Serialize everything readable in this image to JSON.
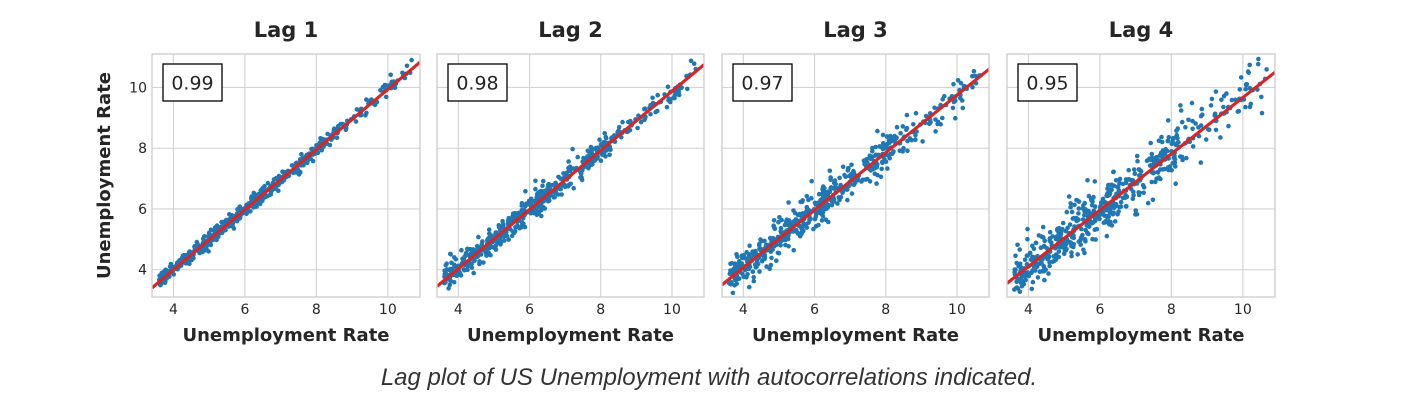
{
  "caption": "Lag plot of US Unemployment with autocorrelations indicated.",
  "colors": {
    "points": "#1f77b4",
    "fit_line": "#d62728",
    "grid": "#d4d4d4",
    "axes_frame": "#cccccc"
  },
  "chart_data": [
    {
      "type": "scatter",
      "title": "Lag 1",
      "xlabel": "Unemployment Rate",
      "ylabel": "Unemployment Rate",
      "annotation": "0.99",
      "xlim": [
        3.4,
        10.9
      ],
      "ylim": [
        3.1,
        11.1
      ],
      "xticks": [
        4,
        6,
        8,
        10
      ],
      "yticks": [
        4,
        6,
        8,
        10
      ],
      "grid": true,
      "fit_line": [
        [
          3.4,
          3.4
        ],
        [
          10.9,
          10.83
        ]
      ],
      "spread": 0.12
    },
    {
      "type": "scatter",
      "title": "Lag 2",
      "xlabel": "Unemployment Rate",
      "ylabel": "",
      "annotation": "0.98",
      "xlim": [
        3.4,
        10.9
      ],
      "ylim": [
        3.1,
        11.1
      ],
      "xticks": [
        4,
        6,
        8,
        10
      ],
      "yticks": [
        4,
        6,
        8,
        10
      ],
      "grid": true,
      "fit_line": [
        [
          3.4,
          3.45
        ],
        [
          10.9,
          10.75
        ]
      ],
      "spread": 0.2
    },
    {
      "type": "scatter",
      "title": "Lag 3",
      "xlabel": "Unemployment Rate",
      "ylabel": "",
      "annotation": "0.97",
      "xlim": [
        3.4,
        10.9
      ],
      "ylim": [
        3.1,
        11.1
      ],
      "xticks": [
        4,
        6,
        8,
        10
      ],
      "yticks": [
        4,
        6,
        8,
        10
      ],
      "grid": true,
      "fit_line": [
        [
          3.4,
          3.5
        ],
        [
          10.9,
          10.6
        ]
      ],
      "spread": 0.3
    },
    {
      "type": "scatter",
      "title": "Lag 4",
      "xlabel": "Unemployment Rate",
      "ylabel": "",
      "annotation": "0.95",
      "xlim": [
        3.4,
        10.9
      ],
      "ylim": [
        3.1,
        11.1
      ],
      "xticks": [
        4,
        6,
        8,
        10
      ],
      "yticks": [
        4,
        6,
        8,
        10
      ],
      "grid": true,
      "fit_line": [
        [
          3.4,
          3.55
        ],
        [
          10.9,
          10.5
        ]
      ],
      "spread": 0.4
    }
  ]
}
